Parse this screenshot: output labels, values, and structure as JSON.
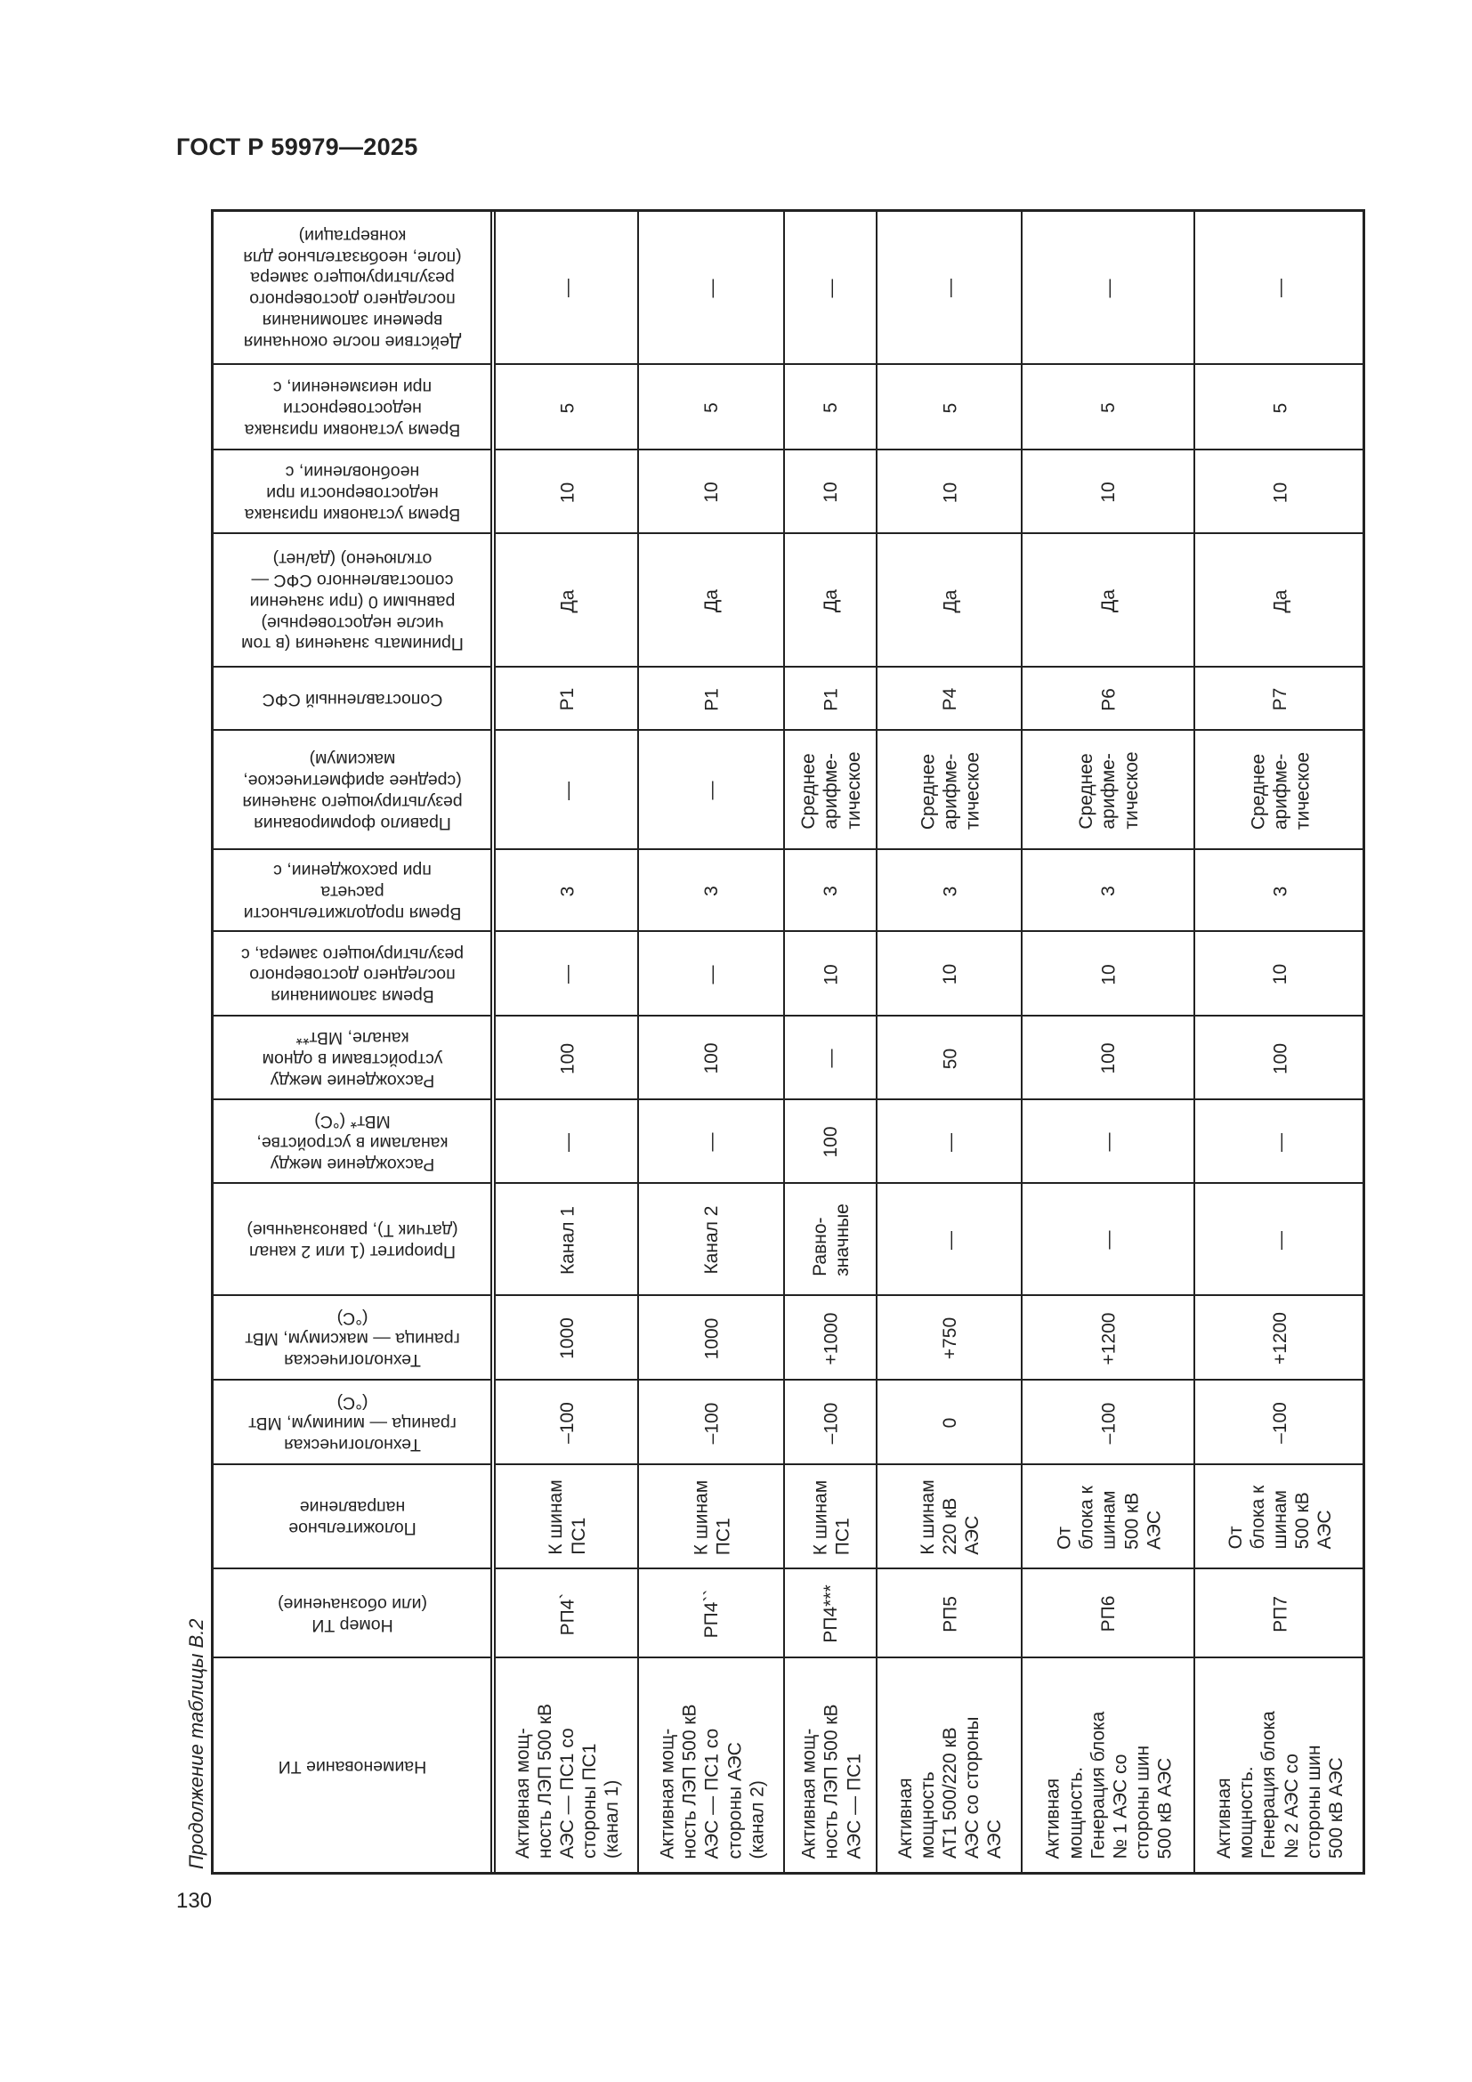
{
  "page": {
    "doc_title": "ГОСТ Р 59979—2025",
    "page_number": "130",
    "caption": "Продолжение таблицы В.2"
  },
  "table": {
    "headers": [
      "Наименование ТИ",
      "Номер ТИ\n(или обозначение)",
      "Положительное\nнаправление",
      "Технологическая\nграница — минимум, МВт\n(°С)",
      "Технологическая\nграница — максимум, МВт\n(°С)",
      "Приоритет (1 или 2 канал\n(датчик Т), равнозначные)",
      "Расхождение между\nканалами в устройстве,\nМВт* (°С)",
      "Расхождение между\nустройствами в одном\nканале, МВт**",
      "Время запоминания\nпоследнего достоверного\nрезультирующего замера, с",
      "Время продолжительности\nрасчета\nпри расхождении, с",
      "Правило формирования\nрезультирующего значения\n(среднее арифметическое,\nмаксимум)",
      "Сопоставленный СФС",
      "Принимать значения (в том\nчисле недостоверные)\nравными 0 (при значении\nсопоставленного СФС —\nотключено) (да/нет)",
      "Время установки признака\nнедостоверности при\nнеобновлении, с",
      "Время установки признака\nнедостоверности\nпри неизменении, с",
      "Действие после окончания\nвремени запоминания\nпоследнего достоверного\nрезультирующего замера\n(поле, необязательное для\nконвертации)"
    ],
    "rows": [
      [
        "Активная мощ-\nность ЛЭП 500 кВ\nАЭС — ПС1 со\nстороны ПС1\n(канал 1)",
        "РП4`",
        "К шинам\nПС1",
        "–100",
        "1000",
        "Канал 1",
        "—",
        "100",
        "—",
        "3",
        "—",
        "Р1",
        "Да",
        "10",
        "5",
        "—"
      ],
      [
        "Активная мощ-\nность ЛЭП 500 кВ\nАЭС — ПС1 со\nстороны АЭС\n(канал 2)",
        "РП4``",
        "К шинам\nПС1",
        "–100",
        "1000",
        "Канал 2",
        "—",
        "100",
        "—",
        "3",
        "—",
        "Р1",
        "Да",
        "10",
        "5",
        "—"
      ],
      [
        "Активная мощ-\nность ЛЭП 500 кВ\nАЭС — ПС1",
        "РП4***",
        "К шинам\nПС1",
        "–100",
        "+1000",
        "Равно-\nзначные",
        "100",
        "—",
        "10",
        "3",
        "Среднее\nарифме-\nтическое",
        "Р1",
        "Да",
        "10",
        "5",
        "—"
      ],
      [
        "Активная\nмощность\nАТ1 500/220 кВ\nАЭС со стороны\nАЭС",
        "РП5",
        "К шинам\n220 кВ\nАЭС",
        "0",
        "+750",
        "—",
        "—",
        "50",
        "10",
        "3",
        "Среднее\nарифме-\nтическое",
        "Р4",
        "Да",
        "10",
        "5",
        "—"
      ],
      [
        "Активная\nмощность.\nГенерация блока\n№ 1 АЭС со\nстороны шин\n500 кВ АЭС",
        "РП6",
        "От\nблока к\nшинам\n500 кВ\nАЭС",
        "–100",
        "+1200",
        "—",
        "—",
        "100",
        "10",
        "3",
        "Среднее\nарифме-\nтическое",
        "Р6",
        "Да",
        "10",
        "5",
        "—"
      ],
      [
        "Активная\nмощность.\nГенерация блока\n№ 2 АЭС со\nстороны шин\n500 кВ АЭС",
        "РП7",
        "От\nблока к\nшинам\n500 кВ\nАЭС",
        "–100",
        "+1200",
        "—",
        "—",
        "100",
        "10",
        "3",
        "Среднее\nарифме-\nтическое",
        "Р7",
        "Да",
        "10",
        "5",
        "—"
      ]
    ]
  }
}
